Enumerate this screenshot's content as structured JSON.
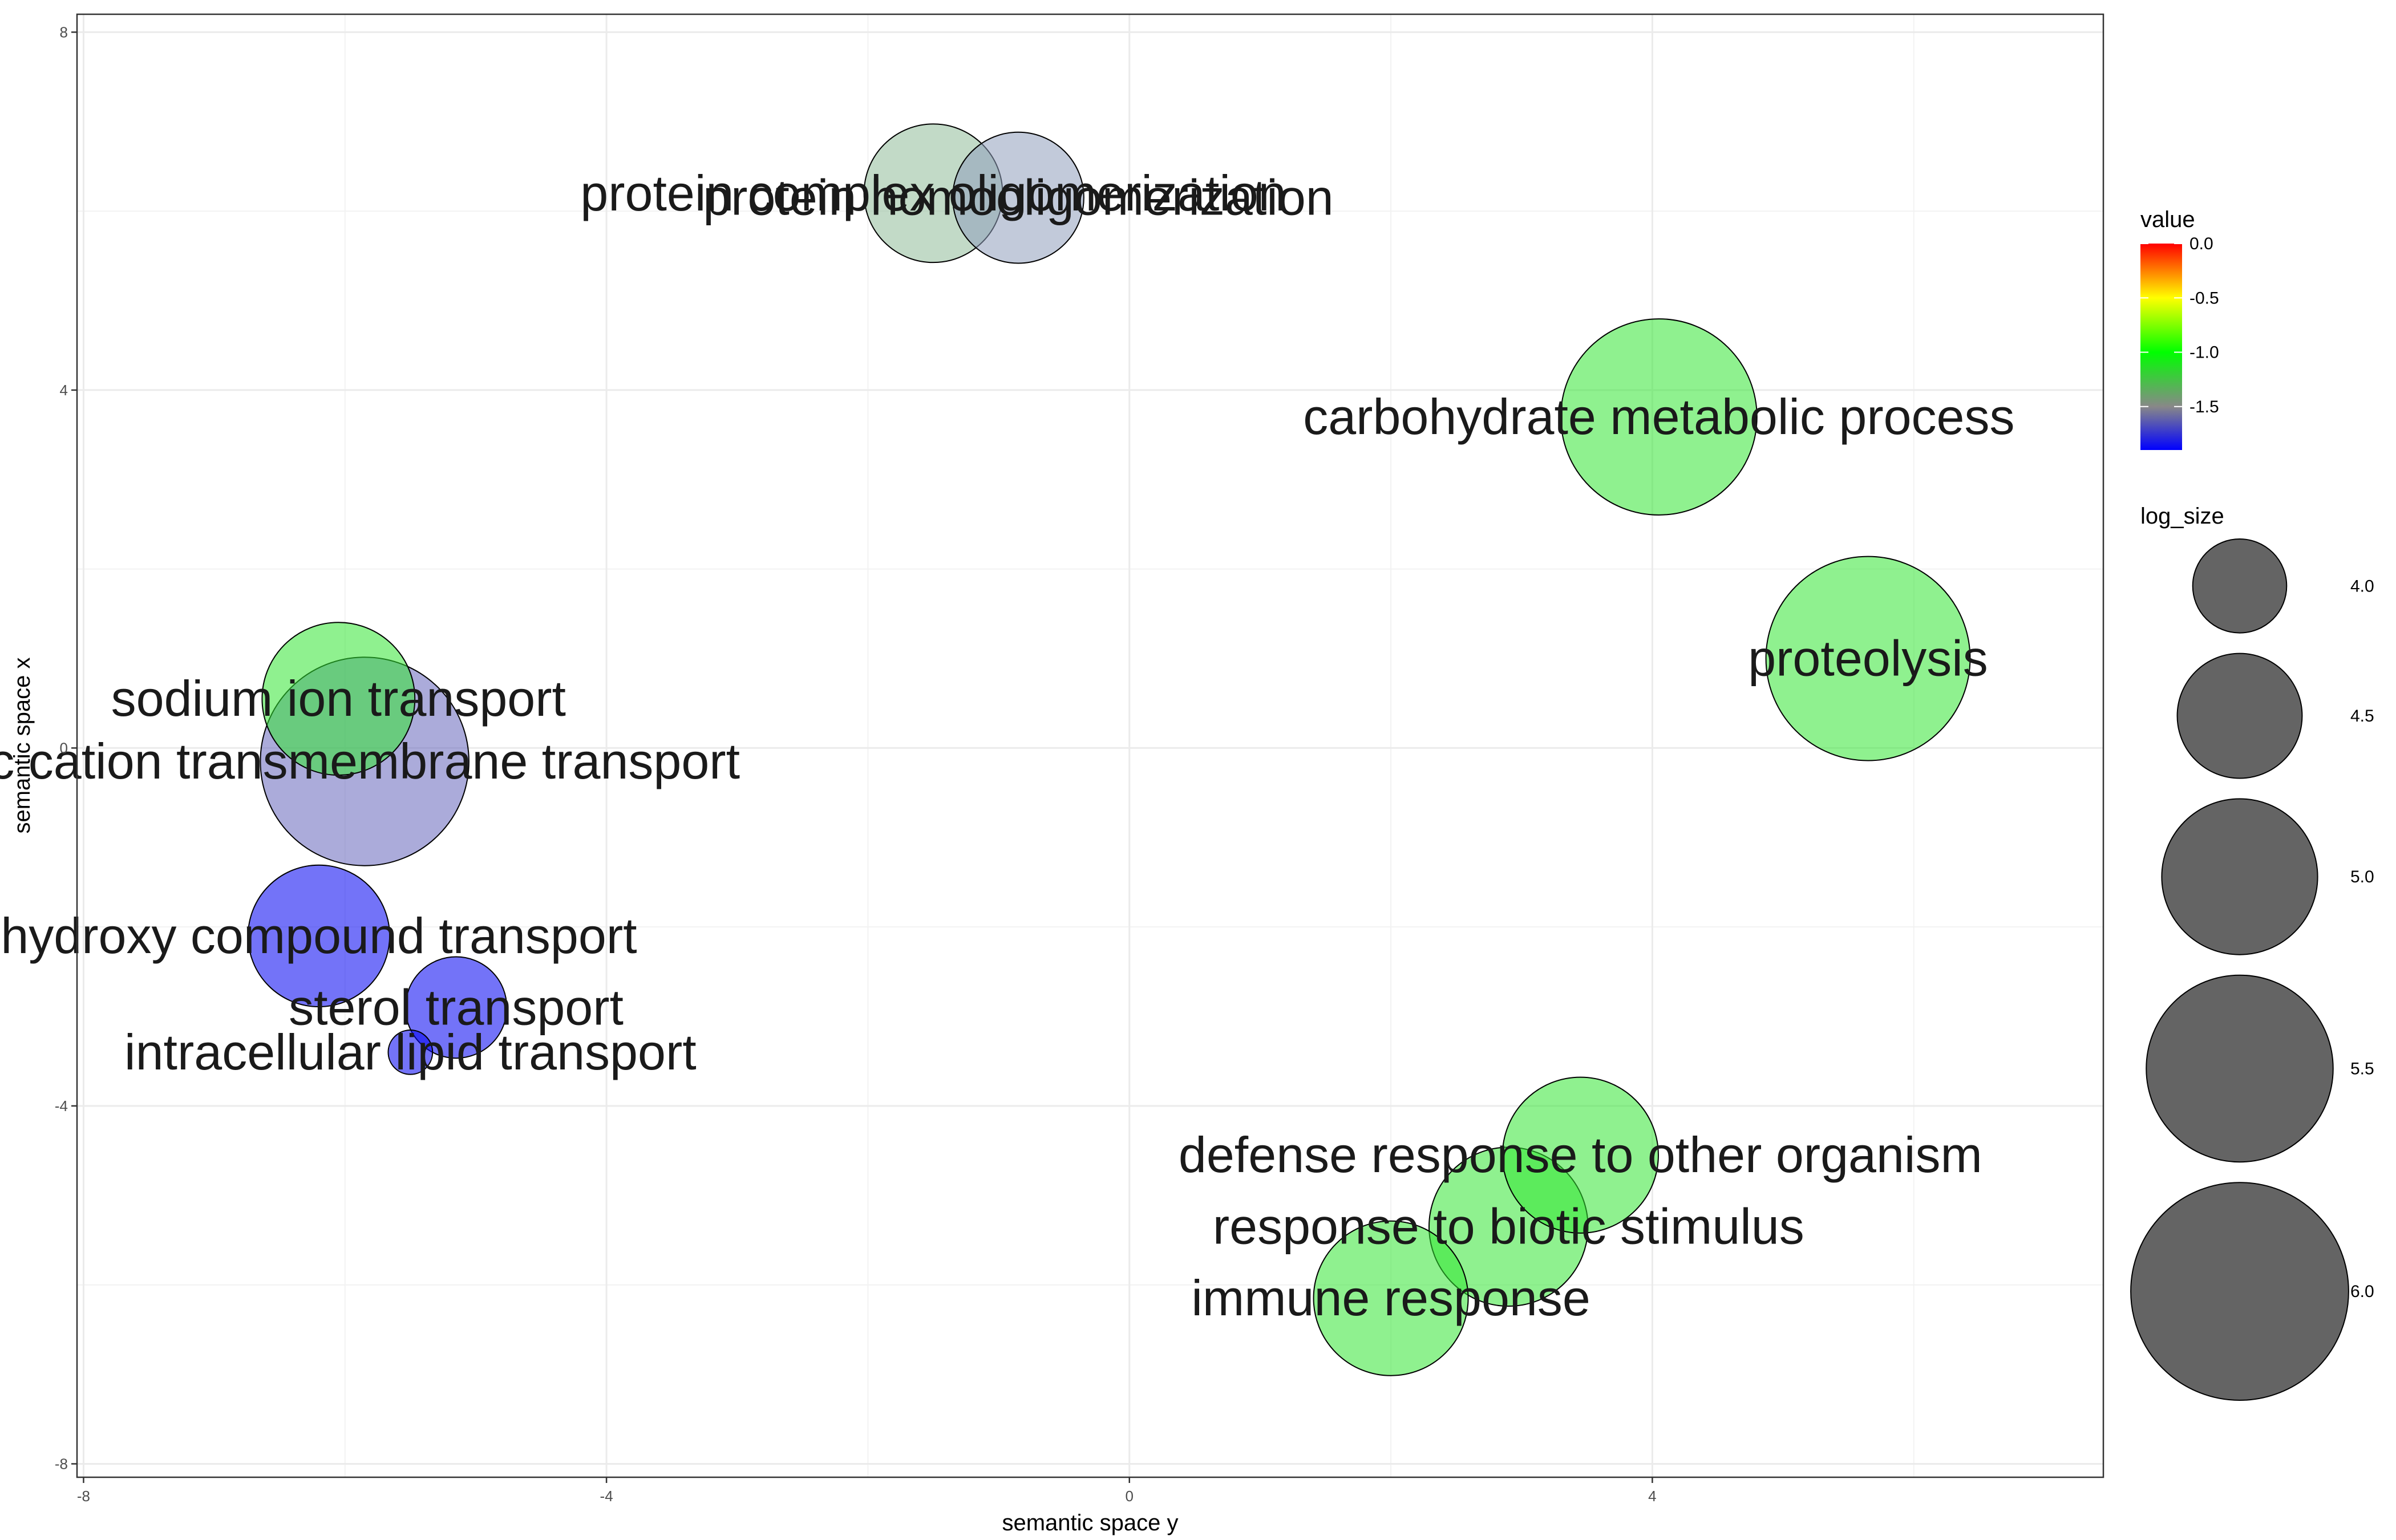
{
  "chart_data": {
    "type": "scatter",
    "title": "",
    "xlabel": "semantic space y",
    "ylabel": "semantic space x",
    "xlim": [
      -8.05,
      7.45
    ],
    "ylim": [
      -8.15,
      8.2
    ],
    "xticks": [
      -8,
      -4,
      0,
      4
    ],
    "yticks": [
      -8,
      -4,
      0,
      4,
      8
    ],
    "grid": true,
    "points": [
      {
        "label": "protein complex oligomerization",
        "x": -1.5,
        "y": 6.2,
        "value": -1.45,
        "log_size": 4.72,
        "color": "#8fbc99"
      },
      {
        "label": "protein homooligomerization",
        "x": -0.85,
        "y": 6.15,
        "value": -1.55,
        "log_size": 4.6,
        "color": "#8f9fbc"
      },
      {
        "label": "carbohydrate metabolic process",
        "x": 4.05,
        "y": 3.7,
        "value": -1.2,
        "log_size": 5.65,
        "color": "#33e633"
      },
      {
        "label": "proteolysis",
        "x": 5.65,
        "y": 1.0,
        "value": -1.2,
        "log_size": 5.78,
        "color": "#33e633"
      },
      {
        "label": "sodium ion transport",
        "x": -6.05,
        "y": 0.55,
        "value": -1.2,
        "log_size": 4.95,
        "color": "#33e633"
      },
      {
        "label": "c cation transmembrane transport",
        "x": -5.85,
        "y": -0.15,
        "value": -1.65,
        "log_size": 5.85,
        "color": "#6666bb"
      },
      {
        "label": "hydroxy compound transport",
        "x": -6.2,
        "y": -2.1,
        "value": -1.85,
        "log_size": 4.77,
        "color": "#0000f2"
      },
      {
        "label": "sterol transport",
        "x": -5.15,
        "y": -2.9,
        "value": -1.85,
        "log_size": 4.12,
        "color": "#0000f2"
      },
      {
        "label": "intracellular lipid transport",
        "x": -5.5,
        "y": -3.4,
        "value": -1.85,
        "log_size": 3.2,
        "color": "#0000f2"
      },
      {
        "label": "defense response to other organism",
        "x": 3.45,
        "y": -4.55,
        "value": -1.2,
        "log_size": 5.0,
        "color": "#33e633"
      },
      {
        "label": "response to biotic stimulus",
        "x": 2.9,
        "y": -5.35,
        "value": -1.2,
        "log_size": 5.05,
        "color": "#33e633"
      },
      {
        "label": "immune response",
        "x": 2.0,
        "y": -6.15,
        "value": -1.2,
        "log_size": 4.98,
        "color": "#33e633"
      }
    ],
    "legend": {
      "position": "right",
      "color": {
        "title": "value",
        "breaks": [
          0.0,
          -0.5,
          -1.0,
          -1.5
        ],
        "labels": [
          "0.0",
          "-0.5",
          "-1.0",
          "-1.5"
        ],
        "range": [
          -1.9,
          0.0
        ],
        "gradient": [
          {
            "value": 0.0,
            "color": "#ff0000"
          },
          {
            "value": -0.5,
            "color": "#ffff00"
          },
          {
            "value": -1.0,
            "color": "#00ff00"
          },
          {
            "value": -1.5,
            "color": "#888888"
          },
          {
            "value": -1.9,
            "color": "#0000ff"
          }
        ]
      },
      "size": {
        "title": "log_size",
        "breaks": [
          4.0,
          4.5,
          5.0,
          5.5,
          6.0
        ],
        "labels": [
          "4.0",
          "4.5",
          "5.0",
          "5.5",
          "6.0"
        ],
        "color": "#111111"
      }
    }
  }
}
